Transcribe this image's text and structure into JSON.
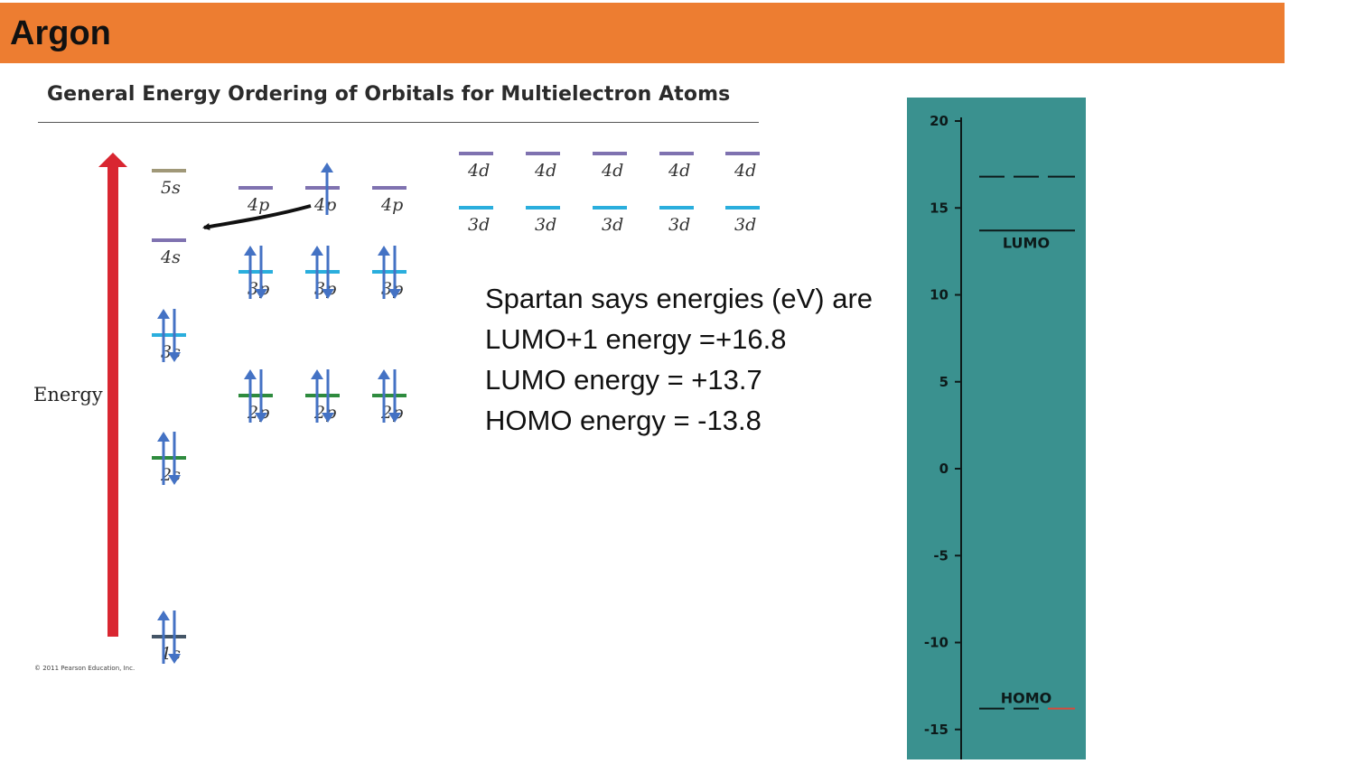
{
  "header": {
    "title": "Argon"
  },
  "diagram": {
    "title": "General Energy Ordering of Orbitals for Multielectron Atoms",
    "energy_axis_label": "Energy",
    "copyright": "© 2011 Pearson Education, Inc.",
    "orbitals": [
      {
        "label": "1s",
        "electrons": 2
      },
      {
        "label": "2s",
        "electrons": 2
      },
      {
        "label": "2p",
        "electrons": 2
      },
      {
        "label": "2p",
        "electrons": 2
      },
      {
        "label": "2p",
        "electrons": 2
      },
      {
        "label": "3s",
        "electrons": 2
      },
      {
        "label": "3p",
        "electrons": 2
      },
      {
        "label": "3p",
        "electrons": 2
      },
      {
        "label": "3p",
        "electrons": 2
      },
      {
        "label": "4s",
        "electrons": 0
      },
      {
        "label": "4p",
        "electrons": 0
      },
      {
        "label": "4p",
        "electrons": 1
      },
      {
        "label": "4p",
        "electrons": 0
      },
      {
        "label": "5s",
        "electrons": 0
      },
      {
        "label": "3d",
        "electrons": 0
      },
      {
        "label": "3d",
        "electrons": 0
      },
      {
        "label": "3d",
        "electrons": 0
      },
      {
        "label": "3d",
        "electrons": 0
      },
      {
        "label": "3d",
        "electrons": 0
      },
      {
        "label": "4d",
        "electrons": 0
      },
      {
        "label": "4d",
        "electrons": 0
      },
      {
        "label": "4d",
        "electrons": 0
      },
      {
        "label": "4d",
        "electrons": 0
      },
      {
        "label": "4d",
        "electrons": 0
      }
    ]
  },
  "spartan_note": {
    "lines": [
      "Spartan says energies (eV) are",
      "LUMO+1 energy =+16.8",
      "LUMO energy = +13.7",
      "HOMO energy = -13.8"
    ]
  },
  "energy_panel": {
    "y_ticks": [
      "20",
      "15",
      "10",
      "5",
      "0",
      "-5",
      "-10",
      "-15"
    ],
    "lumo_label": "LUMO",
    "homo_label": "HOMO",
    "levels_ev": {
      "lumo_plus_1": 16.8,
      "lumo": 13.7,
      "homo": -13.8
    }
  },
  "colors": {
    "banner": "#ED7D31",
    "energy_arrow": "#D92631",
    "electron_arrow": "#4472C4",
    "level_n1": "#445566",
    "level_n2": "#2E8B3E",
    "level_n3": "#2AAEDD",
    "level_4s4p4d": "#7F72B0",
    "level_5s": "#A09878",
    "panel_bg": "#3A918F"
  }
}
